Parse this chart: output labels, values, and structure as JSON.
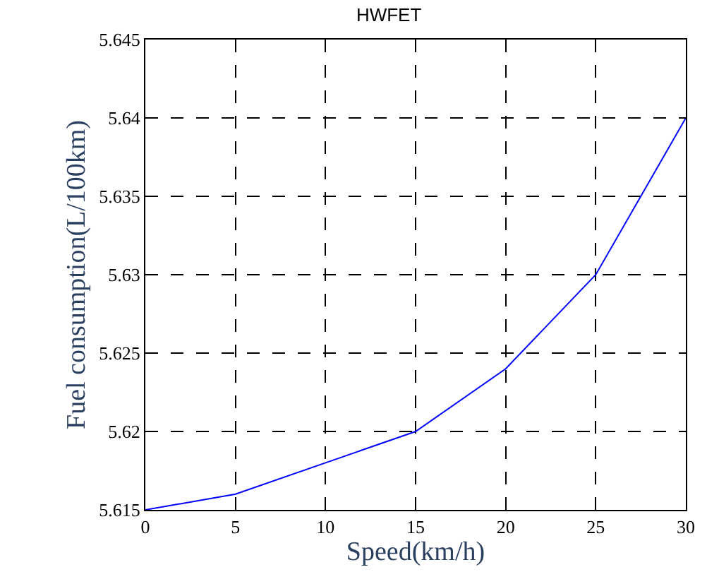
{
  "chart_data": {
    "type": "line",
    "title": "HWFET",
    "xlabel": "Speed(km/h)",
    "ylabel": "Fuel consumption(L/100km)",
    "x": [
      0,
      5,
      10,
      15,
      20,
      25,
      30
    ],
    "series": [
      {
        "color": "#0000ff",
        "values": [
          5.615,
          5.616,
          5.618,
          5.62,
          5.624,
          5.63,
          5.64
        ]
      }
    ],
    "xlim": [
      0,
      30
    ],
    "xticks": [
      0,
      5,
      10,
      15,
      20,
      25,
      30
    ],
    "ylim": [
      5.615,
      5.645
    ],
    "yticks": [
      5.615,
      5.62,
      5.625,
      5.63,
      5.635,
      5.64,
      5.645
    ],
    "grid": true,
    "line_style": "solid",
    "marker": "none"
  }
}
